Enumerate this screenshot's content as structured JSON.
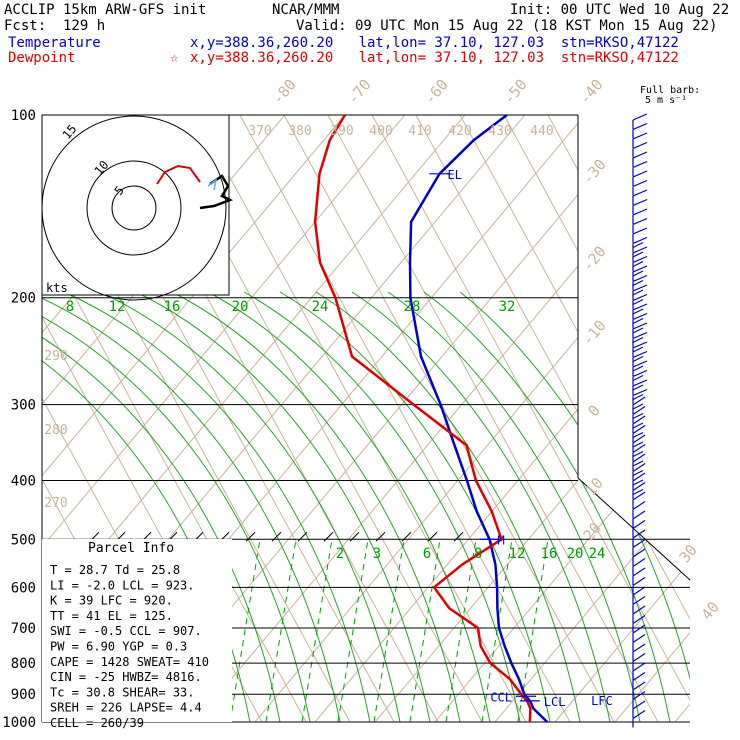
{
  "header": {
    "model": "ACCLIP 15km ARW-GFS init",
    "center": "NCAR/MMM",
    "init": "Init: 00 UTC Wed 10 Aug 22",
    "fcst": "Fcst:  129 h",
    "valid": "Valid: 09 UTC Mon 15 Aug 22 (18 KST Mon 15 Aug 22)",
    "temp_label": "Temperature",
    "dew_label": "Dewpoint",
    "temp_info": "x,y=388.36,260.20   lat,lon= 37.10, 127.03  stn=RKSO,47122",
    "dew_info": "x,y=388.36,260.20   lat,lon= 37.10, 127.03  stn=RKSO,47122",
    "dew_marker": "☆"
  },
  "barb_legend": {
    "line1": "Full barb:",
    "line2": "5 m s⁻¹"
  },
  "colors": {
    "temperature": "#0000d0",
    "dewpoint": "#e00000",
    "isotherm": "#c8b49a",
    "mixing_ratio": "#00a000"
  },
  "chart_data": {
    "type": "line",
    "title": "",
    "y_axis": {
      "label": "",
      "scale": "log",
      "range": [
        1000,
        100
      ],
      "ticks": [
        100,
        200,
        300,
        400,
        500,
        600,
        700,
        800,
        900,
        1000
      ]
    },
    "isotherm_labels": [
      "-80",
      "-70",
      "-60",
      "-50",
      "-40",
      "-30",
      "-20",
      "-10",
      "0",
      "10",
      "20",
      "30",
      "40"
    ],
    "theta_labels": [
      "370",
      "380",
      "390",
      "400",
      "410",
      "420",
      "430",
      "440",
      "290",
      "280",
      "270"
    ],
    "mixing_ratio_labels_upper": [
      "8",
      "12",
      "16",
      "20",
      "24",
      "28",
      "32"
    ],
    "mixing_ratio_labels_lower": [
      "2",
      "3",
      "6",
      "8",
      "12",
      "16",
      "20",
      "24"
    ],
    "series": [
      {
        "name": "Temperature",
        "color": "#0000d0",
        "p": [
          1000,
          950,
          925,
          900,
          850,
          800,
          750,
          700,
          650,
          600,
          550,
          500,
          450,
          400,
          350,
          300,
          250,
          200,
          175,
          150,
          125,
          110,
          100
        ],
        "t": [
          28.7,
          24.5,
          23.0,
          21.0,
          18.0,
          14.5,
          11.0,
          7.5,
          4.5,
          1.5,
          -2.0,
          -6.5,
          -12.5,
          -18.5,
          -25.5,
          -33.5,
          -43.5,
          -53.5,
          -58.5,
          -64.0,
          -66.0,
          -65.0,
          -63.0
        ]
      },
      {
        "name": "Dewpoint",
        "color": "#e00000",
        "p": [
          1000,
          950,
          925,
          900,
          850,
          800,
          750,
          700,
          650,
          600,
          550,
          500,
          450,
          400,
          350,
          300,
          250,
          200,
          175,
          150,
          125,
          110,
          100
        ],
        "t": [
          25.8,
          24.0,
          22.5,
          20.5,
          16.5,
          11.0,
          7.0,
          4.0,
          -3.5,
          -9.0,
          -7.5,
          -4.5,
          -10.0,
          -17.0,
          -23.5,
          -38.0,
          -55.0,
          -66.0,
          -73.5,
          -80.0,
          -86.0,
          -89.0,
          -90.0
        ]
      }
    ],
    "level_markers": [
      {
        "label": "EL",
        "p": 125
      },
      {
        "label": "M",
        "p": 500
      },
      {
        "label": "CCL",
        "p": 907
      },
      {
        "label": "LCL",
        "p": 923
      },
      {
        "label": "LFC",
        "p": 920
      }
    ],
    "hodograph": {
      "rings": [
        "5",
        "10",
        "15"
      ],
      "units": "kts"
    }
  },
  "parcel": {
    "title": "Parcel Info",
    "rows": [
      "T  =    28.7  Td =  25.8",
      "LI =    -2.0  LCL =  923.",
      "K  =      39  LFC =  920.",
      "TT =      41  EL  =  125.",
      "SWI =   -0.5  CCL =  907.",
      "PW =   6.90  YGP =   0.3",
      "CAPE =  1428  SWEAT=  410",
      "CIN =    -25  HWBZ= 4816.",
      "Tc =    30.8  SHEAR=  33.",
      "SREH =   226  LAPSE=  4.4",
      "CELL = 260/39"
    ]
  }
}
